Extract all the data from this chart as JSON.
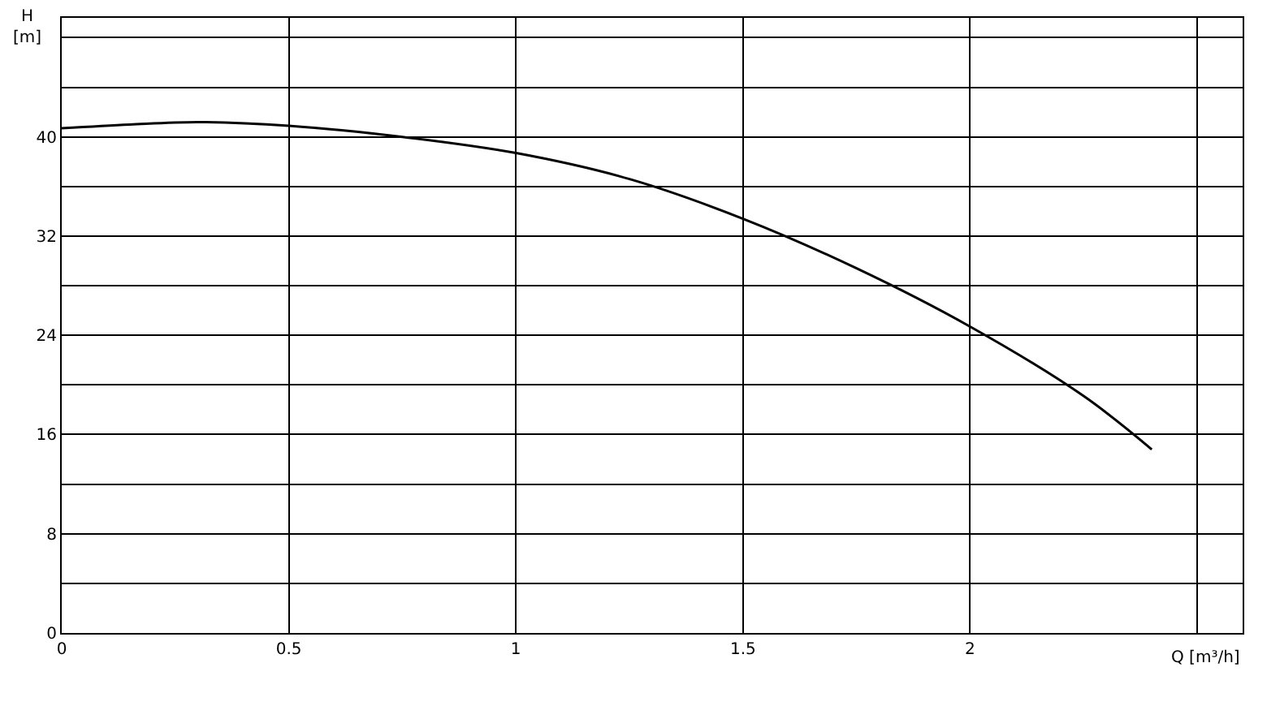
{
  "chart_data": {
    "type": "line",
    "xlabel": "Q [m³/h]",
    "ylabel": "H [m]",
    "x": [
      0,
      0.15,
      0.3,
      0.5,
      0.75,
      1,
      1.25,
      1.5,
      1.75,
      2,
      2.25,
      2.4
    ],
    "series": [
      {
        "color": "#000000",
        "values": [
          40.7,
          41.0,
          41.2,
          40.9,
          40.0,
          38.7,
          36.6,
          33.4,
          29.4,
          24.7,
          19.1,
          14.8
        ]
      }
    ],
    "xlim": [
      0,
      2.6
    ],
    "xticks": [
      0,
      0.5,
      1,
      1.5,
      2,
      {
        "value": 2.5,
        "label": null
      }
    ],
    "ylim": [
      0,
      49.6
    ],
    "yticks": [
      0,
      {
        "value": 4,
        "label": null
      },
      8,
      {
        "value": 12,
        "label": null
      },
      16,
      {
        "value": 20,
        "label": null
      },
      24,
      {
        "value": 28,
        "label": null
      },
      32,
      {
        "value": 36,
        "label": null
      },
      40,
      {
        "value": 44,
        "label": null
      },
      {
        "value": 48,
        "label": null
      }
    ],
    "grid": true,
    "marker": "none",
    "line_style": "solid"
  }
}
